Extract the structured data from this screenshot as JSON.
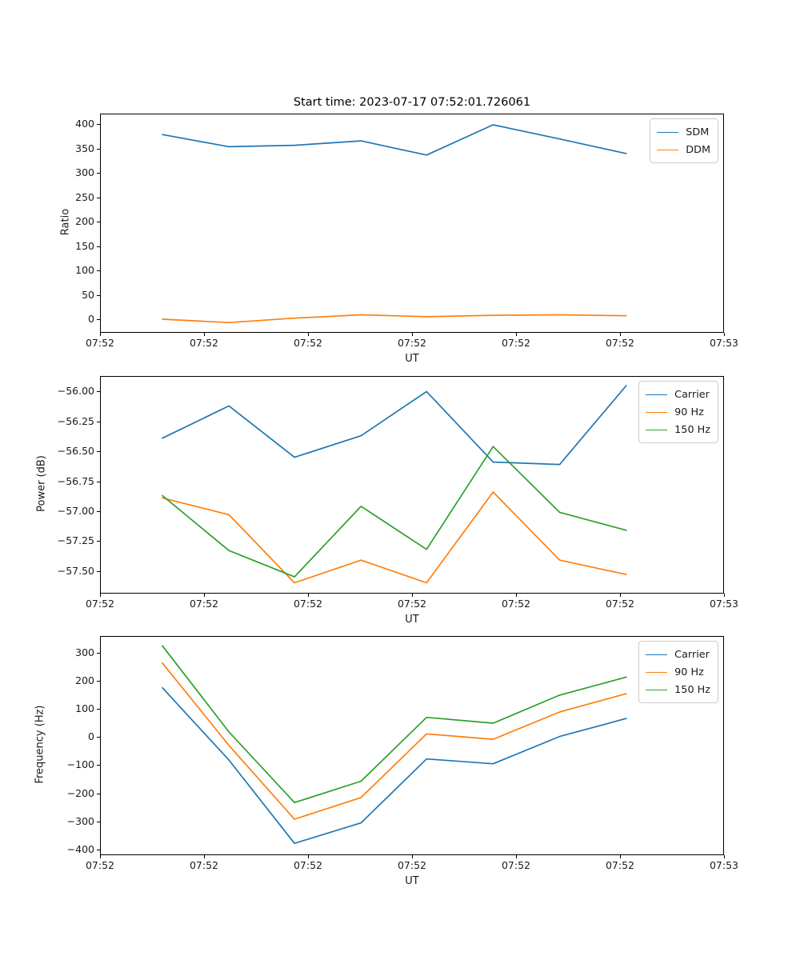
{
  "figure": {
    "title": "Start time: 2023-07-17 07:52:01.726061",
    "background_color": "#ffffff",
    "frame_color": "#000000",
    "text_color": "#1a1a1a",
    "legend_border_color": "#cccccc"
  },
  "chart_data": [
    {
      "type": "line",
      "xlabel": "UT",
      "ylabel": "Ratio",
      "grid": false,
      "legend_position": "upper right",
      "xlim": [
        0,
        60
      ],
      "ylim": [
        -28,
        422
      ],
      "xticks": {
        "values": [
          0,
          10,
          20,
          30,
          40,
          50,
          60
        ],
        "labels": [
          "07:52",
          "07:52",
          "07:52",
          "07:52",
          "07:52",
          "07:52",
          "07:53"
        ]
      },
      "yticks": {
        "values": [
          0,
          50,
          100,
          150,
          200,
          250,
          300,
          350,
          400
        ],
        "labels": [
          "0",
          "50",
          "100",
          "150",
          "200",
          "250",
          "300",
          "350",
          "400"
        ]
      },
      "x": [
        6.0,
        12.4,
        18.7,
        25.1,
        31.4,
        37.8,
        44.2,
        50.6
      ],
      "series": [
        {
          "name": "SDM",
          "color": "#1f77b4",
          "values": [
            379,
            354,
            357,
            366,
            337,
            399,
            370,
            340
          ]
        },
        {
          "name": "DDM",
          "color": "#ff7f0e",
          "values": [
            0,
            -7,
            2,
            9,
            5,
            8,
            9,
            7
          ]
        }
      ]
    },
    {
      "type": "line",
      "xlabel": "UT",
      "ylabel": "Power (dB)",
      "grid": false,
      "legend_position": "upper right",
      "xlim": [
        0,
        60
      ],
      "ylim": [
        -57.69,
        -55.87
      ],
      "xticks": {
        "values": [
          0,
          10,
          20,
          30,
          40,
          50,
          60
        ],
        "labels": [
          "07:52",
          "07:52",
          "07:52",
          "07:52",
          "07:52",
          "07:52",
          "07:53"
        ]
      },
      "yticks": {
        "values": [
          -56.0,
          -56.25,
          -56.5,
          -56.75,
          -57.0,
          -57.25,
          -57.5
        ],
        "labels": [
          "−56.00",
          "−56.25",
          "−56.50",
          "−56.75",
          "−57.00",
          "−57.25",
          "−57.50"
        ]
      },
      "x": [
        6.0,
        12.4,
        18.7,
        25.1,
        31.4,
        37.8,
        44.2,
        50.6
      ],
      "series": [
        {
          "name": "Carrier",
          "color": "#1f77b4",
          "values": [
            -56.39,
            -56.12,
            -56.55,
            -56.37,
            -56.0,
            -56.59,
            -56.61,
            -55.95
          ]
        },
        {
          "name": "90 Hz",
          "color": "#ff7f0e",
          "values": [
            -56.89,
            -57.03,
            -57.6,
            -57.41,
            -57.6,
            -56.84,
            -57.41,
            -57.53
          ]
        },
        {
          "name": "150 Hz",
          "color": "#2ca02c",
          "values": [
            -56.87,
            -57.33,
            -57.55,
            -56.96,
            -57.32,
            -56.46,
            -57.01,
            -57.16
          ]
        }
      ]
    },
    {
      "type": "line",
      "xlabel": "UT",
      "ylabel": "Frequency (Hz)",
      "grid": false,
      "legend_position": "upper right",
      "xlim": [
        0,
        60
      ],
      "ylim": [
        -420,
        359
      ],
      "xticks": {
        "values": [
          0,
          10,
          20,
          30,
          40,
          50,
          60
        ],
        "labels": [
          "07:52",
          "07:52",
          "07:52",
          "07:52",
          "07:52",
          "07:52",
          "07:53"
        ]
      },
      "yticks": {
        "values": [
          300,
          200,
          100,
          0,
          -100,
          -200,
          -300,
          -400
        ],
        "labels": [
          "300",
          "200",
          "100",
          "0",
          "−100",
          "−200",
          "−300",
          "−400"
        ]
      },
      "x": [
        6.0,
        12.4,
        18.7,
        25.1,
        31.4,
        37.8,
        44.2,
        50.6
      ],
      "series": [
        {
          "name": "Carrier",
          "color": "#1f77b4",
          "values": [
            175,
            -82,
            -378,
            -305,
            -78,
            -95,
            2,
            66
          ]
        },
        {
          "name": "90 Hz",
          "color": "#ff7f0e",
          "values": [
            263,
            -30,
            -292,
            -215,
            11,
            -8,
            89,
            154
          ]
        },
        {
          "name": "150 Hz",
          "color": "#2ca02c",
          "values": [
            324,
            18,
            -233,
            -157,
            70,
            49,
            149,
            213
          ]
        }
      ]
    }
  ]
}
